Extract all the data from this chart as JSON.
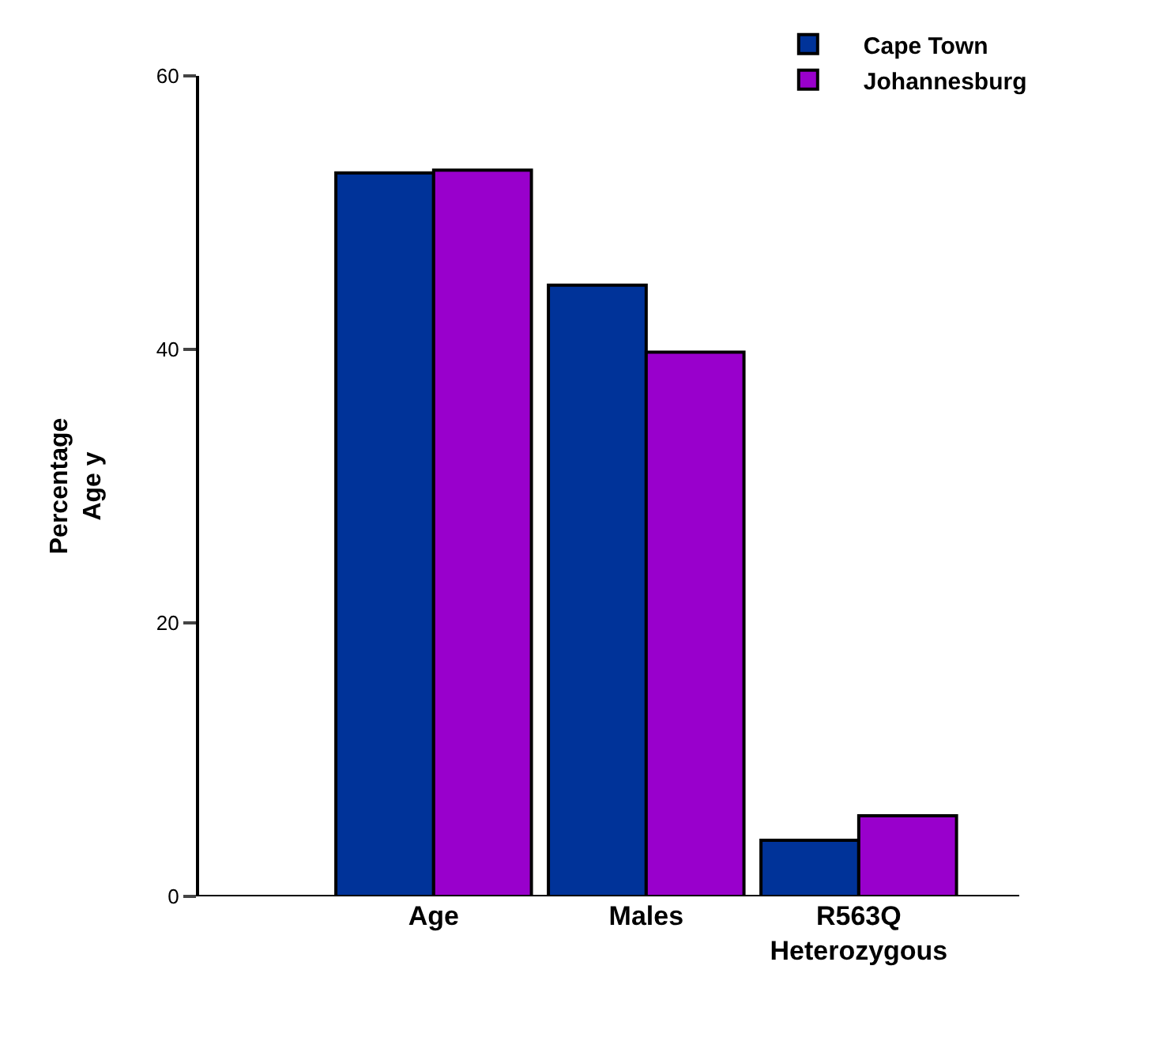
{
  "chart_data": {
    "type": "bar",
    "ylabel": "Percentage\nAge y",
    "categories": [
      "Age",
      "Males",
      "R563Q\nHeterozygous"
    ],
    "series": [
      {
        "name": "Cape Town",
        "color": "#003399",
        "values": [
          52.9,
          44.7,
          4.1
        ]
      },
      {
        "name": "Johannesburg",
        "color": "#9900cc",
        "values": [
          53.1,
          39.8,
          5.9
        ]
      }
    ],
    "ylim": [
      0,
      60
    ],
    "yticks": [
      0,
      20,
      40,
      60
    ],
    "grid": false,
    "legend": "top right"
  }
}
